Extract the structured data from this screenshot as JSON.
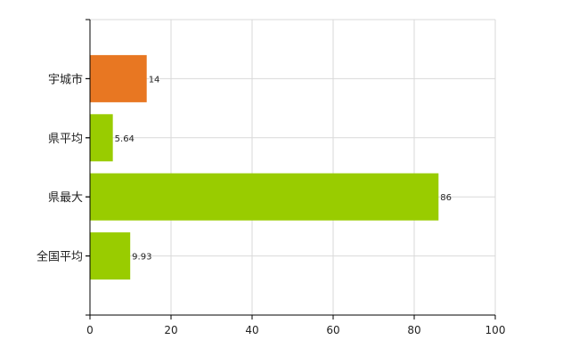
{
  "chart_data": {
    "type": "bar",
    "orientation": "horizontal",
    "categories": [
      "宇城市",
      "県平均",
      "県最大",
      "全国平均"
    ],
    "values": [
      14,
      5.64,
      86,
      9.93
    ],
    "value_labels": [
      "14",
      "5.64",
      "86",
      "9.93"
    ],
    "colors": [
      "#E87722",
      "#99CC00",
      "#99CC00",
      "#99CC00"
    ],
    "xlim": [
      0,
      100
    ],
    "x_ticks": [
      0,
      20,
      40,
      60,
      80,
      100
    ],
    "x_tick_labels": [
      "0",
      "20",
      "40",
      "60",
      "80",
      "100"
    ],
    "grid": true,
    "legend": "none"
  }
}
